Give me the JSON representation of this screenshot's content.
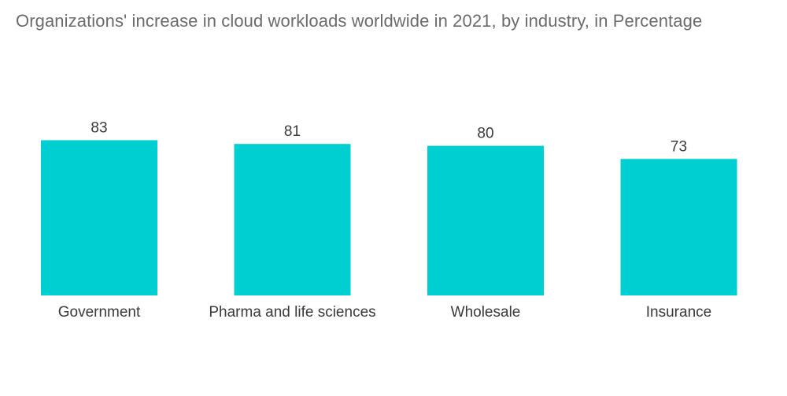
{
  "chart_data": {
    "type": "bar",
    "title": "Organizations' increase in cloud workloads worldwide in 2021, by industry, in Percentage",
    "categories": [
      "Government",
      "Pharma and life sciences",
      "Wholesale",
      "Insurance"
    ],
    "values": [
      83,
      81,
      80,
      73
    ],
    "xlabel": "",
    "ylabel": "",
    "ylim": [
      0,
      100
    ],
    "grid": false,
    "legend": "none",
    "bar_color": "#00cfd2",
    "data_labels": true
  }
}
